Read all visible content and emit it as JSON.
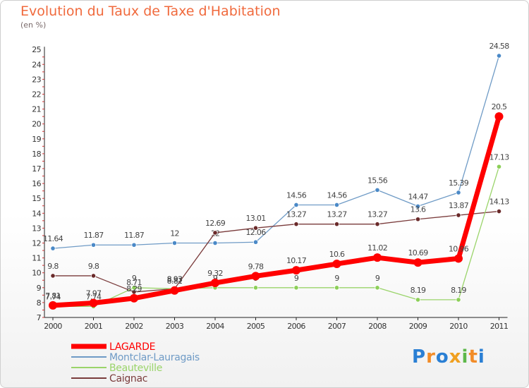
{
  "title": "Evolution du Taux de Taxe d'Habitation",
  "subtitle": "(en %)",
  "logo_text": "Proxiti",
  "chart_data": {
    "type": "line",
    "x": [
      "2000",
      "2001",
      "2002",
      "2003",
      "2004",
      "2005",
      "2006",
      "2007",
      "2008",
      "2009",
      "2010",
      "2011"
    ],
    "ylim": [
      7,
      25
    ],
    "yticks": [
      7,
      8,
      9,
      10,
      11,
      12,
      13,
      14,
      15,
      16,
      17,
      18,
      19,
      20,
      21,
      22,
      23,
      24,
      25
    ],
    "grid": false,
    "legend_position": "bottom-left",
    "series": [
      {
        "name": "Montclar-Lauragais",
        "color": "#6f9bc6",
        "marker": "#4a89c7",
        "width": 1.3,
        "values": [
          11.64,
          11.87,
          11.87,
          12,
          12,
          12.06,
          14.56,
          14.56,
          15.56,
          14.47,
          15.39,
          24.58
        ],
        "labels": [
          "11.64",
          "11.87",
          "11.87",
          "12",
          "12",
          "12.06",
          "14.56",
          "14.56",
          "15.56",
          "14.47",
          "15.39",
          "24.58"
        ]
      },
      {
        "name": "Caignac",
        "color": "#7a3b3b",
        "marker": "#6a2a2a",
        "width": 1.3,
        "values": [
          9.8,
          9.8,
          8.71,
          8.93,
          12.69,
          13.01,
          13.27,
          13.27,
          13.27,
          13.6,
          13.87,
          14.13
        ],
        "labels": [
          "9.8",
          "9.8",
          "8.71",
          "8.93",
          "12.69",
          "13.01",
          "13.27",
          "13.27",
          "13.27",
          "13.6",
          "13.87",
          "14.13"
        ]
      },
      {
        "name": "Beauteville",
        "color": "#9ad46a",
        "marker": "#8ccf58",
        "width": 1.3,
        "values": [
          7.74,
          7.74,
          9,
          8.93,
          9,
          9,
          9,
          9,
          9,
          8.19,
          8.19,
          17.13
        ],
        "labels": [
          "7.74",
          "7.74",
          "9",
          "8.93",
          "9",
          "9",
          "9",
          "9",
          "9",
          "8.19",
          "8.19",
          "17.13"
        ]
      },
      {
        "name": "LAGARDE",
        "color": "#ff0000",
        "marker": "#ff0000",
        "width": 7,
        "values": [
          7.81,
          7.97,
          8.29,
          8.81,
          9.32,
          9.78,
          10.17,
          10.6,
          11.02,
          10.69,
          10.96,
          20.5
        ],
        "labels": [
          "7.81",
          "7.97",
          "8.29",
          "8.81",
          "9.32",
          "9.78",
          "10.17",
          "10.6",
          "11.02",
          "10.69",
          "10.96",
          "20.5"
        ]
      }
    ],
    "legend": [
      "LAGARDE",
      "Montclar-Lauragais",
      "Beauteville",
      "Caignac"
    ]
  }
}
